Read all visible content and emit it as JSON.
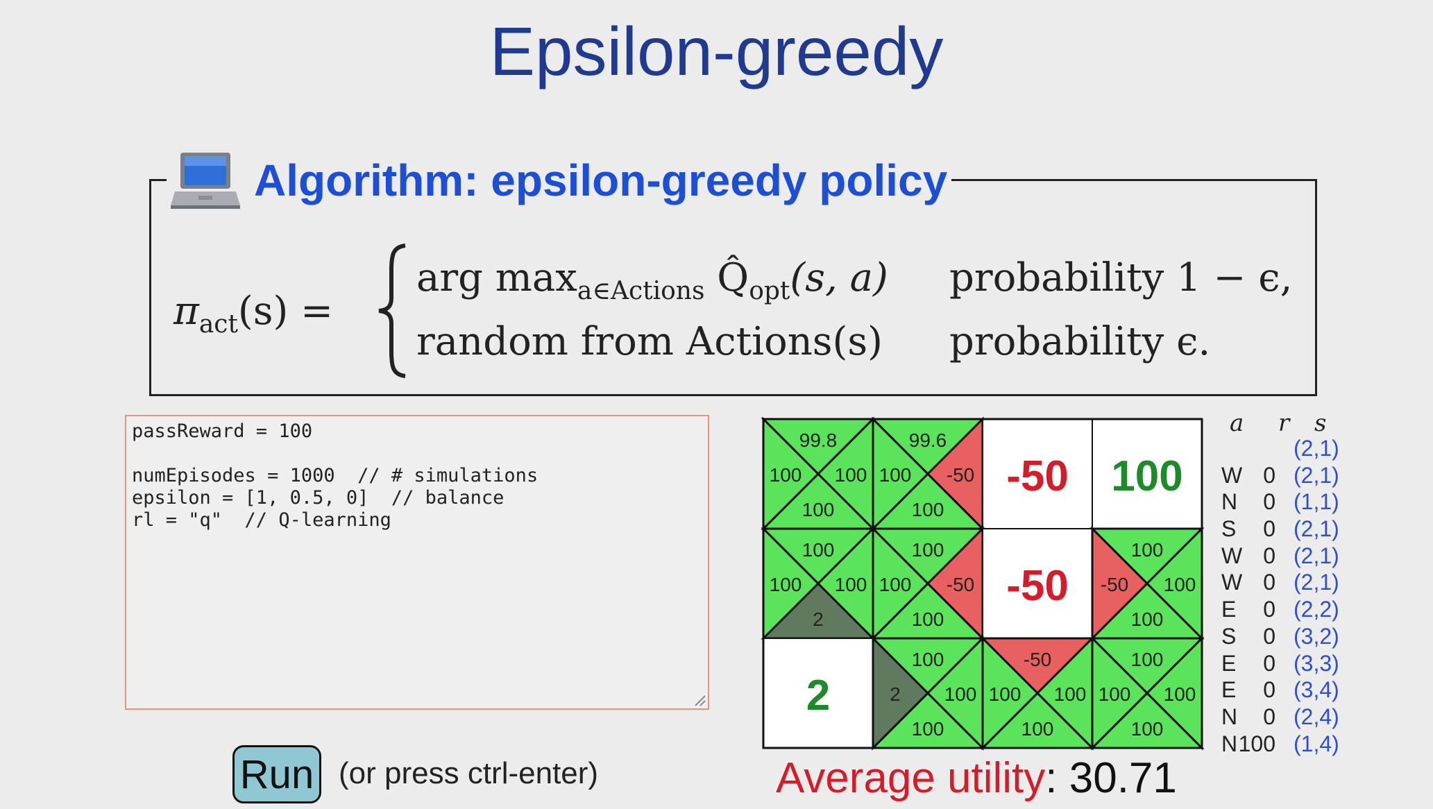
{
  "slide": {
    "title": "Epsilon-greedy"
  },
  "algorithm": {
    "icon": "laptop-icon",
    "title": "Algorithm: epsilon-greedy policy",
    "formula": {
      "lhs_symbol": "π",
      "lhs_sub": "act",
      "lhs_rest": "(s) =",
      "case1_main": "arg max",
      "case1_sub": "a∈Actions",
      "case1_q": "Q̂",
      "case1_q_sub": "opt",
      "case1_args": "(s, a)",
      "case1_prob": "probability 1 − ϵ,",
      "case2_main": "random from Actions(s)",
      "case2_prob": "probability ϵ."
    }
  },
  "editor": {
    "code": "passReward = 100\n\nnumEpisodes = 1000  // # simulations\nepsilon = [1, 0.5, 0]  // balance\nrl = \"q\"  // Q-learning"
  },
  "run": {
    "label": "Run",
    "hint": "(or press ctrl-enter)"
  },
  "grid": {
    "colors": {
      "green": "#5ce35c",
      "red": "#e86060",
      "dark": "#5f7a5f",
      "white": "#ffffff",
      "line": "#111111",
      "big_red": "#d41d2a",
      "big_green": "#1f8a2a"
    },
    "cells": [
      {
        "row": 0,
        "col": 0,
        "type": "q",
        "n": "99.8",
        "w": "100",
        "e": "100",
        "s": "100",
        "cn": "green",
        "cw": "green",
        "ce": "green",
        "cs": "green"
      },
      {
        "row": 0,
        "col": 1,
        "type": "q",
        "n": "99.6",
        "w": "100",
        "e": "-50",
        "s": "100",
        "cn": "green",
        "cw": "green",
        "ce": "red",
        "cs": "green"
      },
      {
        "row": 0,
        "col": 2,
        "type": "terminal",
        "value": "-50",
        "color": "big_red"
      },
      {
        "row": 0,
        "col": 3,
        "type": "terminal",
        "value": "100",
        "color": "big_green"
      },
      {
        "row": 1,
        "col": 0,
        "type": "q",
        "n": "100",
        "w": "100",
        "e": "100",
        "s": "2",
        "cn": "green",
        "cw": "green",
        "ce": "green",
        "cs": "dark"
      },
      {
        "row": 1,
        "col": 1,
        "type": "q",
        "n": "100",
        "w": "100",
        "e": "-50",
        "s": "100",
        "cn": "green",
        "cw": "green",
        "ce": "red",
        "cs": "green"
      },
      {
        "row": 1,
        "col": 2,
        "type": "terminal",
        "value": "-50",
        "color": "big_red"
      },
      {
        "row": 1,
        "col": 3,
        "type": "q",
        "n": "100",
        "w": "-50",
        "e": "100",
        "s": "100",
        "cn": "green",
        "cw": "red",
        "ce": "green",
        "cs": "green"
      },
      {
        "row": 2,
        "col": 0,
        "type": "terminal",
        "value": "2",
        "color": "big_green"
      },
      {
        "row": 2,
        "col": 1,
        "type": "q",
        "n": "100",
        "w": "2",
        "e": "100",
        "s": "100",
        "cn": "green",
        "cw": "dark",
        "ce": "green",
        "cs": "green"
      },
      {
        "row": 2,
        "col": 2,
        "type": "q",
        "n": "-50",
        "w": "100",
        "e": "100",
        "s": "100",
        "cn": "red",
        "cw": "green",
        "ce": "green",
        "cs": "green"
      },
      {
        "row": 2,
        "col": 3,
        "type": "q",
        "n": "100",
        "w": "100",
        "e": "100",
        "s": "100",
        "cn": "green",
        "cw": "green",
        "ce": "green",
        "cs": "green"
      }
    ]
  },
  "average": {
    "label": "Average utility",
    "value": ": 30.71"
  },
  "trace": {
    "headers": {
      "a": "a",
      "r": "r",
      "s": "s"
    },
    "rows": [
      {
        "a": "",
        "r": "",
        "s": "(2,1)"
      },
      {
        "a": "W",
        "r": "0",
        "s": "(2,1)"
      },
      {
        "a": "N",
        "r": "0",
        "s": "(1,1)"
      },
      {
        "a": "S",
        "r": "0",
        "s": "(2,1)"
      },
      {
        "a": "W",
        "r": "0",
        "s": "(2,1)"
      },
      {
        "a": "W",
        "r": "0",
        "s": "(2,1)"
      },
      {
        "a": "E",
        "r": "0",
        "s": "(2,2)"
      },
      {
        "a": "S",
        "r": "0",
        "s": "(3,2)"
      },
      {
        "a": "E",
        "r": "0",
        "s": "(3,3)"
      },
      {
        "a": "E",
        "r": "0",
        "s": "(3,4)"
      },
      {
        "a": "N",
        "r": "0",
        "s": "(2,4)"
      },
      {
        "a": "N",
        "r": "100",
        "s": "(1,4)"
      }
    ]
  }
}
